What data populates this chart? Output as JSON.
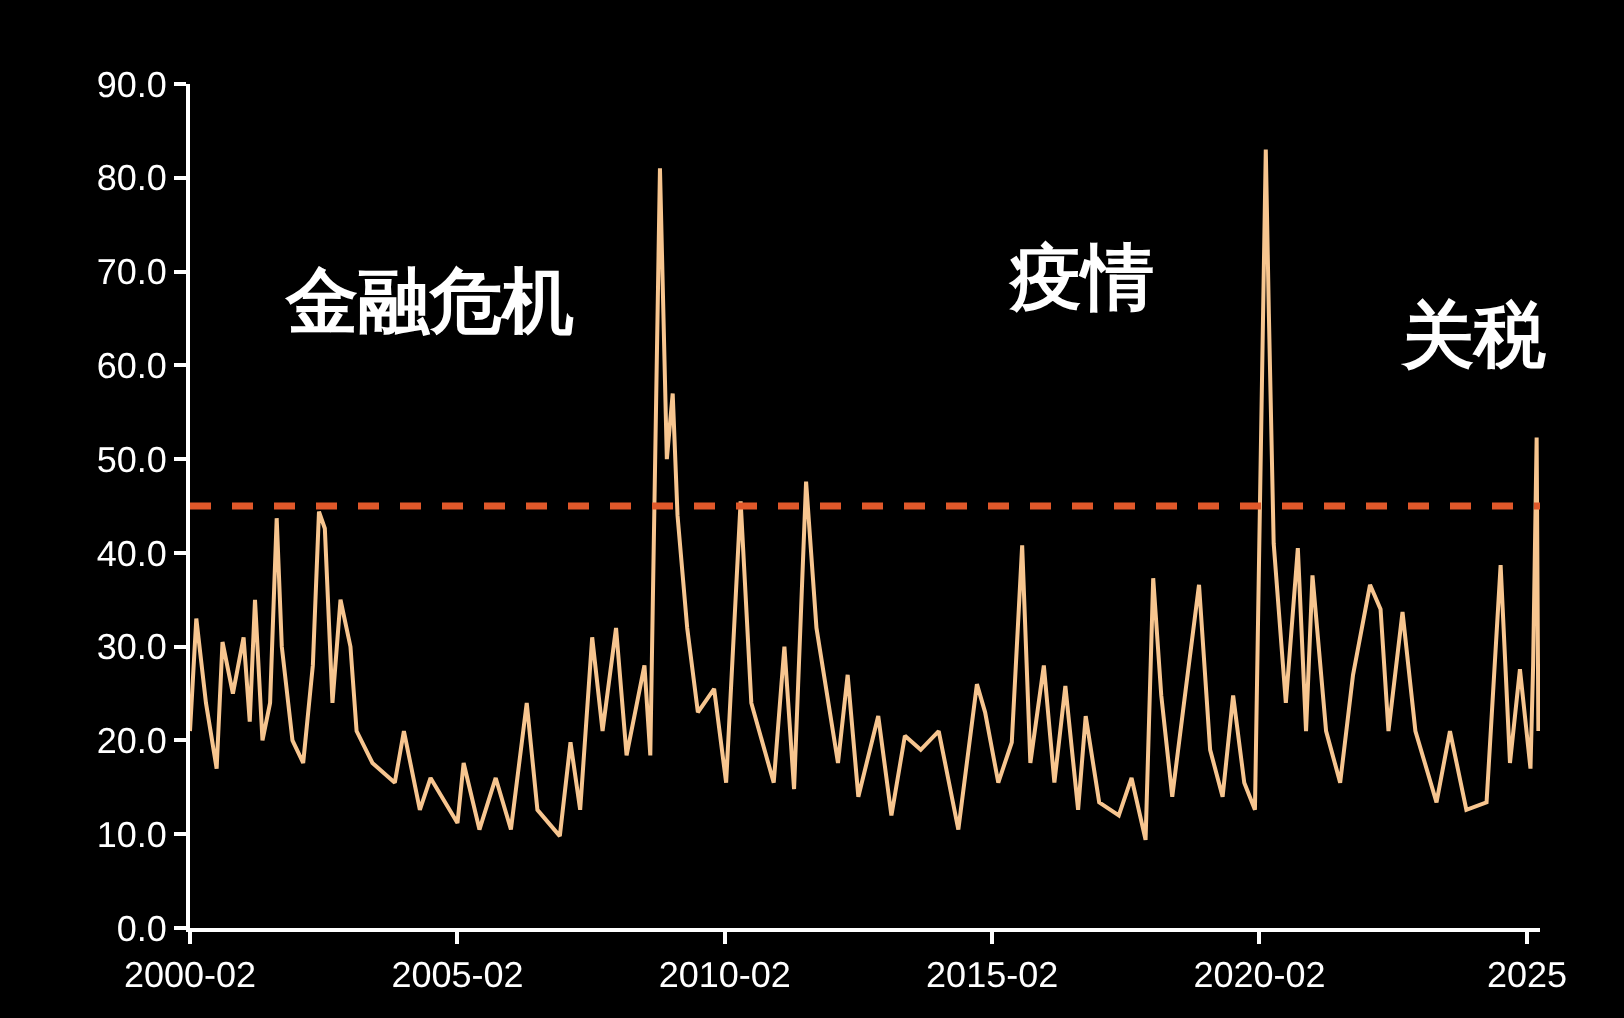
{
  "chart_data": {
    "type": "line",
    "x": [
      "2000-02-01",
      "2000-03-15",
      "2000-05-20",
      "2000-08-01",
      "2000-09-10",
      "2000-11-20",
      "2001-02-01",
      "2001-03-15",
      "2001-04-20",
      "2001-06-10",
      "2001-08-01",
      "2001-09-15",
      "2001-10-20",
      "2002-01-01",
      "2002-03-15",
      "2002-05-20",
      "2002-07-01",
      "2002-08-10",
      "2002-10-01",
      "2002-11-25",
      "2003-02-01",
      "2003-03-15",
      "2003-07-01",
      "2003-12-01",
      "2004-02-01",
      "2004-05-20",
      "2004-08-01",
      "2005-02-01",
      "2005-03-15",
      "2005-07-01",
      "2005-10-20",
      "2006-02-01",
      "2006-05-20",
      "2006-08-01",
      "2007-01-01",
      "2007-03-15",
      "2007-05-20",
      "2007-08-10",
      "2007-10-20",
      "2008-01-20",
      "2008-04-01",
      "2008-08-01",
      "2008-09-10",
      "2008-11-15",
      "2009-01-01",
      "2009-02-10",
      "2009-03-15",
      "2009-05-20",
      "2009-08-01",
      "2009-11-20",
      "2010-02-10",
      "2010-05-20",
      "2010-08-01",
      "2011-01-01",
      "2011-03-15",
      "2011-05-20",
      "2011-08-10",
      "2011-10-20",
      "2012-03-15",
      "2012-05-20",
      "2012-08-01",
      "2012-12-15",
      "2013-03-15",
      "2013-06-15",
      "2013-10-01",
      "2014-02-01",
      "2014-06-15",
      "2014-10-20",
      "2014-12-15",
      "2015-03-15",
      "2015-06-15",
      "2015-08-25",
      "2015-10-20",
      "2016-01-20",
      "2016-04-01",
      "2016-06-15",
      "2016-09-10",
      "2016-11-01",
      "2017-02-01",
      "2017-06-15",
      "2017-09-10",
      "2017-12-15",
      "2018-02-05",
      "2018-04-01",
      "2018-06-15",
      "2018-09-10",
      "2018-12-15",
      "2019-03-01",
      "2019-05-25",
      "2019-08-05",
      "2019-10-20",
      "2020-01-01",
      "2020-03-15",
      "2020-04-05",
      "2020-05-08",
      "2020-07-30",
      "2020-10-20",
      "2020-12-15",
      "2021-01-28",
      "2021-05-01",
      "2021-08-05",
      "2021-11-01",
      "2022-02-25",
      "2022-05-08",
      "2022-07-01",
      "2022-10-05",
      "2023-01-01",
      "2023-05-25",
      "2023-08-25",
      "2023-12-15",
      "2024-05-01",
      "2024-08-05",
      "2024-10-08",
      "2024-12-15",
      "2025-02-25",
      "2025-03-15",
      "2025-04-08",
      "2025-04-20"
    ],
    "values": [
      21,
      33,
      24,
      17,
      30.5,
      25,
      31,
      22,
      35,
      20,
      24,
      43.7,
      30,
      20,
      17.6,
      28,
      44.4,
      42.6,
      24,
      35,
      30,
      21,
      17.6,
      15.5,
      21,
      12.6,
      16,
      11.2,
      17.6,
      10.5,
      16,
      10.5,
      24,
      12.6,
      9.8,
      19.8,
      12.6,
      31,
      21,
      32,
      18.4,
      28,
      18.4,
      81,
      50,
      57,
      44,
      32,
      23,
      25.5,
      15.5,
      45.5,
      24,
      15.5,
      30,
      14.8,
      47.6,
      32,
      17.6,
      27,
      14,
      22.6,
      12,
      20.5,
      19,
      21,
      10.5,
      26,
      23,
      15.5,
      19.8,
      40.8,
      17.6,
      28,
      15.5,
      25.8,
      12.6,
      22.6,
      13.4,
      12,
      16,
      9.4,
      37.3,
      24.8,
      14,
      24.8,
      36.6,
      19,
      14,
      24.8,
      15.5,
      12.6,
      83,
      65.5,
      41,
      24,
      40.5,
      21,
      37.6,
      21,
      15.5,
      27,
      36.6,
      34,
      21,
      33.7,
      21,
      13.4,
      21,
      12.6,
      13.4,
      38.7,
      17.6,
      27.6,
      17,
      28,
      52.3,
      21
    ],
    "color": "#f7c58f",
    "xlim": [
      "2000-02-01",
      "2025-05-01"
    ],
    "xticks": [
      {
        "value": "2000-02-01",
        "label": "2000-02"
      },
      {
        "value": "2005-02-01",
        "label": "2005-02"
      },
      {
        "value": "2010-02-01",
        "label": "2010-02"
      },
      {
        "value": "2015-02-01",
        "label": "2015-02"
      },
      {
        "value": "2020-02-01",
        "label": "2020-02"
      },
      {
        "value": "2025-02-01",
        "label": "2025"
      }
    ],
    "ylim": [
      0,
      90
    ],
    "yticks": [
      {
        "value": 0,
        "label": "0.0"
      },
      {
        "value": 10,
        "label": "10.0"
      },
      {
        "value": 20,
        "label": "20.0"
      },
      {
        "value": 30,
        "label": "30.0"
      },
      {
        "value": 40,
        "label": "40.0"
      },
      {
        "value": 50,
        "label": "50.0"
      },
      {
        "value": 60,
        "label": "60.0"
      },
      {
        "value": 70,
        "label": "70.0"
      },
      {
        "value": 80,
        "label": "80.0"
      },
      {
        "value": 90,
        "label": "90.0"
      }
    ],
    "ref_lines": [
      {
        "axis": "y",
        "value": 45,
        "color": "#e0582a",
        "line_style": "dashed"
      }
    ],
    "annotations": [
      "金融危机",
      "疫情",
      "关税"
    ],
    "grid": false,
    "line_style": "solid",
    "marker": "none"
  }
}
